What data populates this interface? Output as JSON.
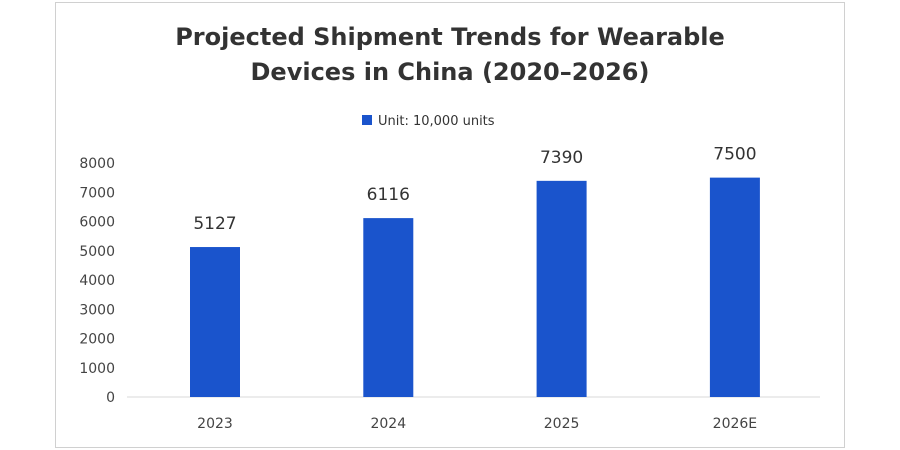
{
  "chart_data": {
    "type": "bar",
    "title_lines": [
      "Projected Shipment Trends for Wearable",
      "Devices in China (2020–2026)"
    ],
    "legend": "Unit: 10,000 units",
    "legend_position": "top",
    "categories": [
      "2023",
      "2024",
      "2025",
      "2026E"
    ],
    "values": [
      5127,
      6116,
      7390,
      7500
    ],
    "yticks": [
      0,
      1000,
      2000,
      3000,
      4000,
      5000,
      6000,
      7000,
      8000
    ],
    "ylim": [
      0,
      8000
    ],
    "grid": false,
    "bar_color": "#1a54cc",
    "xlabel": "",
    "ylabel": ""
  }
}
